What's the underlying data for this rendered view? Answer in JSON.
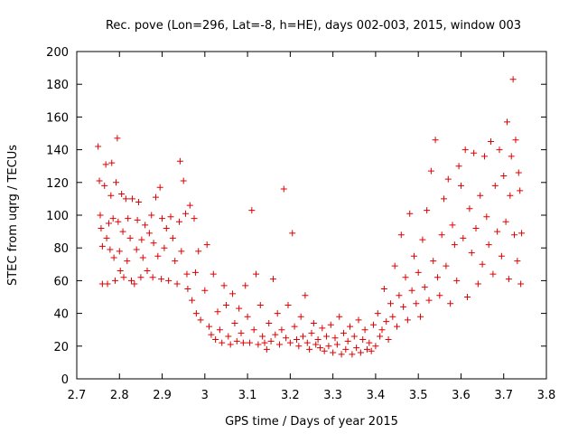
{
  "chart_data": {
    "type": "scatter",
    "title": "Rec. pove (Lon=296, Lat=-8, h=HE), days 002-003, 2015, window 003",
    "xlabel": "GPS time / Days of year 2015",
    "ylabel": "STEC from uqrg / TECUs",
    "xlim": [
      2.7,
      3.8
    ],
    "ylim": [
      0,
      200
    ],
    "xticks": [
      "2.7",
      "2.8",
      "2.9",
      "3",
      "3.1",
      "3.2",
      "3.3",
      "3.4",
      "3.5",
      "3.6",
      "3.7",
      "3.8"
    ],
    "yticks": [
      "0",
      "20",
      "40",
      "60",
      "80",
      "100",
      "120",
      "140",
      "160",
      "180",
      "200"
    ],
    "grid": false,
    "marker": "+",
    "color": "#dd0000",
    "series": [
      {
        "points": [
          [
            2.75,
            142
          ],
          [
            2.753,
            121
          ],
          [
            2.755,
            100
          ],
          [
            2.757,
            92
          ],
          [
            2.76,
            81
          ],
          [
            2.76,
            58
          ],
          [
            2.765,
            118
          ],
          [
            2.768,
            131
          ],
          [
            2.77,
            86
          ],
          [
            2.772,
            58
          ],
          [
            2.775,
            95
          ],
          [
            2.778,
            79
          ],
          [
            2.78,
            112
          ],
          [
            2.782,
            132
          ],
          [
            2.785,
            98
          ],
          [
            2.787,
            74
          ],
          [
            2.79,
            60
          ],
          [
            2.792,
            120
          ],
          [
            2.795,
            147
          ],
          [
            2.797,
            96
          ],
          [
            2.8,
            78
          ],
          [
            2.802,
            66
          ],
          [
            2.805,
            113
          ],
          [
            2.808,
            90
          ],
          [
            2.81,
            62
          ],
          [
            2.815,
            110
          ],
          [
            2.818,
            72
          ],
          [
            2.82,
            98
          ],
          [
            2.825,
            86
          ],
          [
            2.828,
            60
          ],
          [
            2.83,
            110
          ],
          [
            2.835,
            58
          ],
          [
            2.84,
            79
          ],
          [
            2.842,
            97
          ],
          [
            2.845,
            108
          ],
          [
            2.85,
            62
          ],
          [
            2.852,
            85
          ],
          [
            2.855,
            74
          ],
          [
            2.86,
            94
          ],
          [
            2.865,
            66
          ],
          [
            2.87,
            89
          ],
          [
            2.875,
            100
          ],
          [
            2.878,
            62
          ],
          [
            2.88,
            83
          ],
          [
            2.885,
            111
          ],
          [
            2.89,
            75
          ],
          [
            2.895,
            117
          ],
          [
            2.898,
            61
          ],
          [
            2.9,
            98
          ],
          [
            2.905,
            80
          ],
          [
            2.91,
            92
          ],
          [
            2.915,
            60
          ],
          [
            2.92,
            99
          ],
          [
            2.925,
            86
          ],
          [
            2.93,
            72
          ],
          [
            2.935,
            58
          ],
          [
            2.94,
            96
          ],
          [
            2.942,
            133
          ],
          [
            2.945,
            78
          ],
          [
            2.95,
            121
          ],
          [
            2.955,
            101
          ],
          [
            2.958,
            64
          ],
          [
            2.96,
            55
          ],
          [
            2.965,
            106
          ],
          [
            2.97,
            48
          ],
          [
            2.975,
            98
          ],
          [
            2.978,
            65
          ],
          [
            2.98,
            40
          ],
          [
            2.985,
            78
          ],
          [
            2.99,
            36
          ],
          [
            3.0,
            54
          ],
          [
            3.005,
            82
          ],
          [
            3.01,
            32
          ],
          [
            3.015,
            27
          ],
          [
            3.02,
            64
          ],
          [
            3.025,
            24
          ],
          [
            3.03,
            41
          ],
          [
            3.035,
            30
          ],
          [
            3.04,
            22
          ],
          [
            3.045,
            57
          ],
          [
            3.05,
            45
          ],
          [
            3.055,
            26
          ],
          [
            3.06,
            21
          ],
          [
            3.065,
            52
          ],
          [
            3.07,
            34
          ],
          [
            3.075,
            23
          ],
          [
            3.08,
            43
          ],
          [
            3.085,
            28
          ],
          [
            3.09,
            22
          ],
          [
            3.095,
            57
          ],
          [
            3.1,
            38
          ],
          [
            3.105,
            22
          ],
          [
            3.11,
            103
          ],
          [
            3.115,
            30
          ],
          [
            3.12,
            64
          ],
          [
            3.125,
            21
          ],
          [
            3.13,
            45
          ],
          [
            3.135,
            26
          ],
          [
            3.14,
            22
          ],
          [
            3.145,
            18
          ],
          [
            3.15,
            34
          ],
          [
            3.155,
            23
          ],
          [
            3.16,
            61
          ],
          [
            3.165,
            27
          ],
          [
            3.17,
            40
          ],
          [
            3.175,
            21
          ],
          [
            3.18,
            30
          ],
          [
            3.185,
            116
          ],
          [
            3.19,
            25
          ],
          [
            3.195,
            45
          ],
          [
            3.2,
            22
          ],
          [
            3.205,
            89
          ],
          [
            3.21,
            32
          ],
          [
            3.215,
            24
          ],
          [
            3.22,
            20
          ],
          [
            3.225,
            38
          ],
          [
            3.23,
            26
          ],
          [
            3.235,
            51
          ],
          [
            3.24,
            22
          ],
          [
            3.245,
            18
          ],
          [
            3.25,
            28
          ],
          [
            3.255,
            34
          ],
          [
            3.26,
            21
          ],
          [
            3.265,
            24
          ],
          [
            3.27,
            19
          ],
          [
            3.275,
            31
          ],
          [
            3.28,
            17
          ],
          [
            3.285,
            26
          ],
          [
            3.29,
            20
          ],
          [
            3.295,
            33
          ],
          [
            3.3,
            16
          ],
          [
            3.305,
            25
          ],
          [
            3.31,
            21
          ],
          [
            3.315,
            38
          ],
          [
            3.32,
            15
          ],
          [
            3.325,
            28
          ],
          [
            3.33,
            18
          ],
          [
            3.335,
            23
          ],
          [
            3.34,
            32
          ],
          [
            3.345,
            15
          ],
          [
            3.35,
            26
          ],
          [
            3.355,
            19
          ],
          [
            3.36,
            36
          ],
          [
            3.365,
            16
          ],
          [
            3.37,
            24
          ],
          [
            3.375,
            30
          ],
          [
            3.38,
            18
          ],
          [
            3.385,
            22
          ],
          [
            3.39,
            17
          ],
          [
            3.395,
            33
          ],
          [
            3.4,
            20
          ],
          [
            3.405,
            40
          ],
          [
            3.41,
            26
          ],
          [
            3.415,
            30
          ],
          [
            3.42,
            55
          ],
          [
            3.425,
            35
          ],
          [
            3.43,
            24
          ],
          [
            3.435,
            46
          ],
          [
            3.44,
            38
          ],
          [
            3.445,
            69
          ],
          [
            3.45,
            32
          ],
          [
            3.455,
            51
          ],
          [
            3.46,
            88
          ],
          [
            3.465,
            44
          ],
          [
            3.47,
            62
          ],
          [
            3.475,
            36
          ],
          [
            3.48,
            101
          ],
          [
            3.485,
            54
          ],
          [
            3.49,
            75
          ],
          [
            3.495,
            46
          ],
          [
            3.5,
            65
          ],
          [
            3.505,
            38
          ],
          [
            3.51,
            85
          ],
          [
            3.515,
            56
          ],
          [
            3.52,
            103
          ],
          [
            3.525,
            48
          ],
          [
            3.53,
            127
          ],
          [
            3.535,
            72
          ],
          [
            3.54,
            146
          ],
          [
            3.545,
            62
          ],
          [
            3.55,
            51
          ],
          [
            3.555,
            88
          ],
          [
            3.56,
            110
          ],
          [
            3.565,
            69
          ],
          [
            3.57,
            122
          ],
          [
            3.575,
            46
          ],
          [
            3.58,
            94
          ],
          [
            3.585,
            82
          ],
          [
            3.59,
            60
          ],
          [
            3.595,
            130
          ],
          [
            3.6,
            118
          ],
          [
            3.605,
            86
          ],
          [
            3.61,
            140
          ],
          [
            3.615,
            50
          ],
          [
            3.62,
            104
          ],
          [
            3.625,
            77
          ],
          [
            3.63,
            138
          ],
          [
            3.635,
            92
          ],
          [
            3.64,
            58
          ],
          [
            3.645,
            112
          ],
          [
            3.65,
            70
          ],
          [
            3.655,
            136
          ],
          [
            3.66,
            99
          ],
          [
            3.665,
            82
          ],
          [
            3.67,
            145
          ],
          [
            3.675,
            64
          ],
          [
            3.68,
            118
          ],
          [
            3.685,
            90
          ],
          [
            3.69,
            140
          ],
          [
            3.695,
            75
          ],
          [
            3.7,
            124
          ],
          [
            3.705,
            96
          ],
          [
            3.708,
            157
          ],
          [
            3.712,
            61
          ],
          [
            3.715,
            112
          ],
          [
            3.718,
            136
          ],
          [
            3.722,
            183
          ],
          [
            3.725,
            88
          ],
          [
            3.728,
            146
          ],
          [
            3.732,
            72
          ],
          [
            3.735,
            126
          ],
          [
            3.738,
            115
          ],
          [
            3.74,
            58
          ],
          [
            3.742,
            89
          ]
        ]
      }
    ]
  }
}
